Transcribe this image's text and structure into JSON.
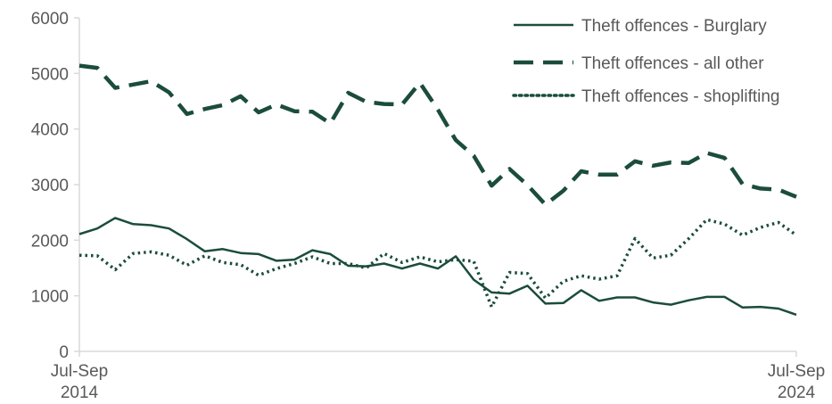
{
  "chart_data": {
    "type": "line",
    "title": "",
    "xlabel": "",
    "ylabel": "",
    "x_tick_labels": [
      {
        "index": 0,
        "line1": "Jul-Sep",
        "line2": "2014"
      },
      {
        "index": 40,
        "line1": "Jul-Sep",
        "line2": "2024"
      }
    ],
    "yticks": [
      0,
      1000,
      2000,
      3000,
      4000,
      5000,
      6000
    ],
    "ylim": [
      0,
      6000
    ],
    "grid": false,
    "legend_position": "top-right",
    "series": [
      {
        "name": "Theft offences - Burglary",
        "style": "solid",
        "color": "#1b4c3d",
        "values": [
          2110,
          2210,
          2400,
          2290,
          2270,
          2210,
          2020,
          1800,
          1840,
          1770,
          1750,
          1630,
          1650,
          1820,
          1750,
          1540,
          1530,
          1580,
          1490,
          1580,
          1490,
          1710,
          1290,
          1060,
          1040,
          1180,
          860,
          870,
          1100,
          910,
          970,
          970,
          880,
          840,
          920,
          980,
          980,
          790,
          800,
          770,
          660
        ]
      },
      {
        "name": "Theft offences - all other",
        "style": "dashed",
        "color": "#1b4c3d",
        "values": [
          5140,
          5100,
          4740,
          4800,
          4860,
          4660,
          4270,
          4360,
          4430,
          4590,
          4300,
          4440,
          4320,
          4310,
          4100,
          4650,
          4490,
          4450,
          4440,
          4830,
          4350,
          3800,
          3520,
          2980,
          3280,
          2990,
          2640,
          2890,
          3240,
          3180,
          3180,
          3420,
          3340,
          3400,
          3390,
          3570,
          3480,
          3010,
          2930,
          2910,
          2780
        ]
      },
      {
        "name": "Theft offences - shoplifting",
        "style": "dotted",
        "color": "#1b4c3d",
        "values": [
          1730,
          1720,
          1470,
          1760,
          1790,
          1730,
          1550,
          1720,
          1600,
          1560,
          1370,
          1490,
          1580,
          1700,
          1580,
          1580,
          1500,
          1760,
          1600,
          1700,
          1610,
          1650,
          1620,
          800,
          1420,
          1400,
          960,
          1260,
          1360,
          1300,
          1360,
          2030,
          1680,
          1730,
          2030,
          2370,
          2290,
          2090,
          2230,
          2320,
          2090
        ]
      }
    ]
  }
}
